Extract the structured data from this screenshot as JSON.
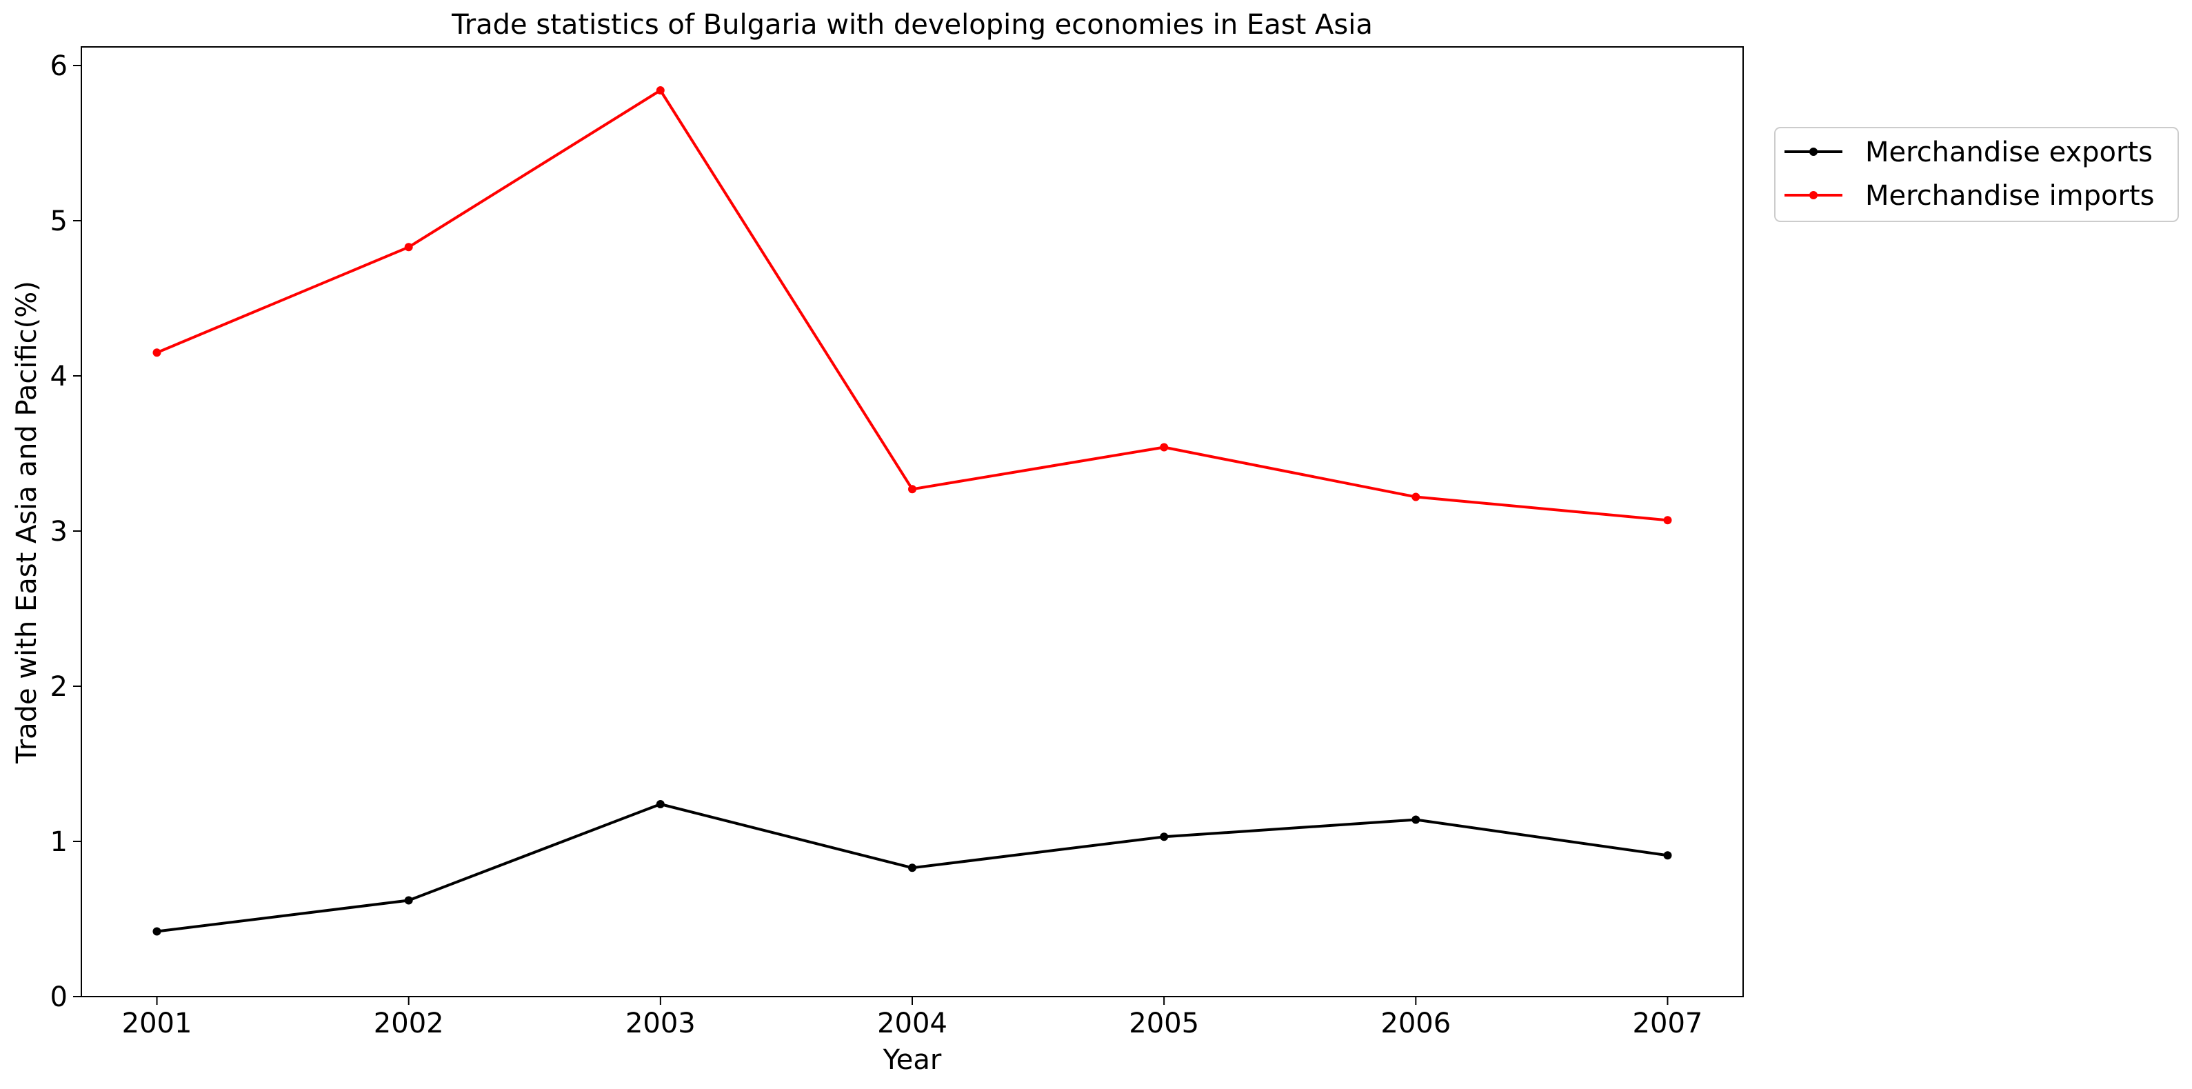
{
  "chart_data": {
    "type": "line",
    "title": "Trade statistics of Bulgaria with developing economies in East Asia",
    "xlabel": "Year",
    "ylabel": "Trade with East Asia and Pacific(%)",
    "x": [
      "2001",
      "2002",
      "2003",
      "2004",
      "2005",
      "2006",
      "2007"
    ],
    "xlim": [
      2000.7,
      2007.3
    ],
    "ylim": [
      0,
      6.12
    ],
    "yticks": [
      0,
      1,
      2,
      3,
      4,
      5,
      6
    ],
    "grid": false,
    "legend_position": "outside-top-right",
    "series": [
      {
        "name": "Merchandise exports",
        "color": "#000000",
        "values": [
          0.42,
          0.62,
          1.24,
          0.83,
          1.03,
          1.14,
          0.91
        ]
      },
      {
        "name": "Merchandise imports",
        "color": "#ff0000",
        "values": [
          4.15,
          4.83,
          5.84,
          3.27,
          3.54,
          3.22,
          3.07
        ]
      }
    ]
  }
}
